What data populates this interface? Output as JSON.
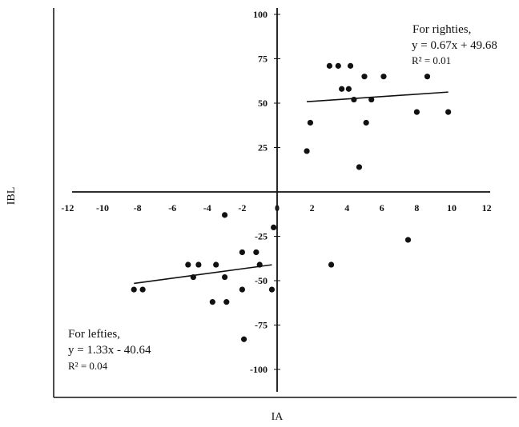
{
  "chart_data": {
    "type": "scatter",
    "xlabel": "IA",
    "ylabel": "IBL",
    "xlim": [
      -12,
      12
    ],
    "ylim": [
      -100,
      100
    ],
    "x_ticks": [
      -12,
      -10,
      -8,
      -6,
      -4,
      -2,
      0,
      2,
      4,
      6,
      8,
      10,
      12
    ],
    "x_tick_labels": [
      "-12",
      "-10",
      "-8",
      "-6",
      "-4",
      "-2",
      "0",
      "2",
      "4",
      "6",
      "8",
      "10",
      "12"
    ],
    "y_ticks": [
      100,
      75,
      50,
      25,
      -25,
      -50,
      -75,
      -100
    ],
    "y_tick_labels": [
      "100",
      "75",
      "50",
      "25",
      "-25",
      "-50",
      "-75",
      "-100"
    ],
    "grid": false,
    "legend": "none",
    "series": [
      {
        "points": [
          [
            1.7,
            23
          ],
          [
            1.9,
            39
          ],
          [
            3.0,
            71
          ],
          [
            3.5,
            71
          ],
          [
            4.2,
            71
          ],
          [
            3.7,
            58
          ],
          [
            4.1,
            58
          ],
          [
            4.4,
            52
          ],
          [
            5.4,
            52
          ],
          [
            5.0,
            65
          ],
          [
            6.1,
            65
          ],
          [
            5.1,
            39
          ],
          [
            4.7,
            14
          ],
          [
            8.0,
            45
          ],
          [
            8.6,
            65
          ],
          [
            9.8,
            45
          ],
          [
            7.5,
            -27
          ],
          [
            3.1,
            -41
          ]
        ]
      },
      {
        "points": [
          [
            -8.2,
            -55
          ],
          [
            -7.7,
            -55
          ],
          [
            -5.1,
            -41
          ],
          [
            -4.5,
            -41
          ],
          [
            -4.8,
            -48
          ],
          [
            -3.5,
            -41
          ],
          [
            -3.0,
            -48
          ],
          [
            -3.7,
            -62
          ],
          [
            -2.9,
            -62
          ],
          [
            -3.0,
            -13
          ],
          [
            -2.0,
            -34
          ],
          [
            -2.0,
            -55
          ],
          [
            -1.2,
            -34
          ],
          [
            -1.0,
            -41
          ],
          [
            -1.9,
            -83
          ],
          [
            -0.3,
            -55
          ],
          [
            -0.2,
            -20
          ]
        ]
      }
    ],
    "trendlines": [
      {
        "slope": 0.67,
        "intercept": 49.68,
        "x_range": [
          1.7,
          9.8
        ]
      },
      {
        "slope": 1.33,
        "intercept": -40.64,
        "x_range": [
          -8.2,
          -0.3
        ]
      }
    ],
    "annotations": {
      "righties": {
        "line1": "For righties,",
        "line2": "y = 0.67x + 49.68",
        "line3": "R² = 0.01"
      },
      "lefties": {
        "line1": "For lefties,",
        "line2": "y = 1.33x - 40.64",
        "line3": "R² = 0.04"
      }
    }
  },
  "colors": {
    "ink": "#111111",
    "background": "#ffffff"
  }
}
